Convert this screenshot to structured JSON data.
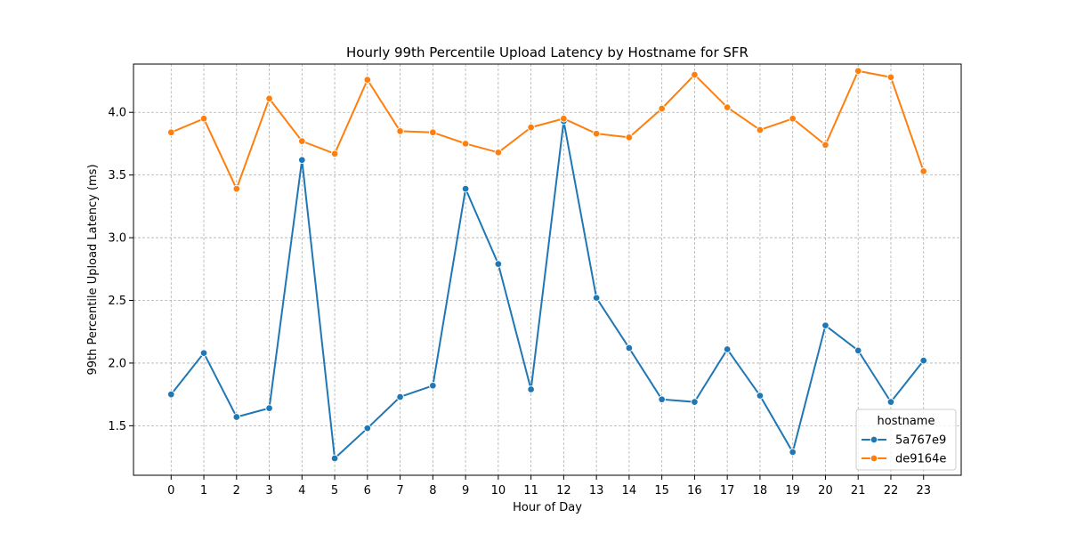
{
  "chart_data": {
    "type": "line",
    "title": "Hourly 99th Percentile Upload Latency by Hostname for SFR",
    "xlabel": "Hour of Day",
    "ylabel": "99th Percentile Upload Latency (ms)",
    "x": [
      0,
      1,
      2,
      3,
      4,
      5,
      6,
      7,
      8,
      9,
      10,
      11,
      12,
      13,
      14,
      15,
      16,
      17,
      18,
      19,
      20,
      21,
      22,
      23
    ],
    "x_tick_labels": [
      "0",
      "1",
      "2",
      "3",
      "4",
      "5",
      "6",
      "7",
      "8",
      "9",
      "10",
      "11",
      "12",
      "13",
      "14",
      "15",
      "16",
      "17",
      "18",
      "19",
      "20",
      "21",
      "22",
      "23"
    ],
    "y_ticks": [
      1.5,
      2.0,
      2.5,
      3.0,
      3.5,
      4.0
    ],
    "y_tick_labels": [
      "1.5",
      "2.0",
      "2.5",
      "3.0",
      "3.5",
      "4.0"
    ],
    "xlim": [
      -1.15,
      24.15
    ],
    "ylim": [
      1.105,
      4.385
    ],
    "grid": true,
    "legend": {
      "title": "hostname",
      "placement": "lower-right"
    },
    "series": [
      {
        "name": "5a767e9",
        "color": "#1f77b4",
        "values": [
          1.75,
          2.08,
          1.57,
          1.64,
          3.62,
          1.24,
          1.48,
          1.73,
          1.82,
          3.39,
          2.79,
          1.79,
          3.93,
          2.52,
          2.12,
          1.71,
          1.69,
          2.11,
          1.74,
          1.29,
          2.3,
          2.1,
          1.69,
          2.02
        ]
      },
      {
        "name": "de9164e",
        "color": "#ff7f0e",
        "values": [
          3.84,
          3.95,
          3.39,
          4.11,
          3.77,
          3.67,
          4.26,
          3.85,
          3.84,
          3.75,
          3.68,
          3.88,
          3.95,
          3.83,
          3.8,
          4.03,
          4.3,
          4.04,
          3.86,
          3.95,
          3.74,
          4.33,
          4.28,
          3.53
        ]
      }
    ]
  }
}
